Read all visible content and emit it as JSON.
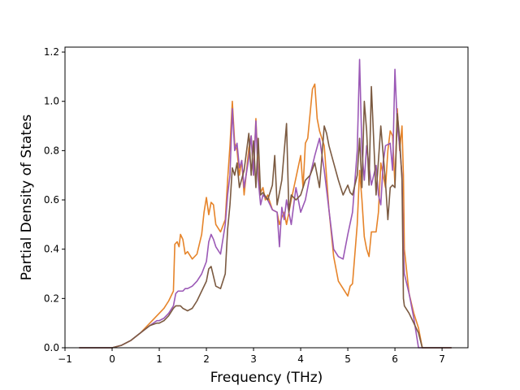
{
  "chart_data": {
    "type": "line",
    "title": "",
    "xlabel": "Frequency (THz)",
    "ylabel": "Partial Density of States",
    "xlim": [
      -1.0,
      7.55
    ],
    "ylim": [
      0.0,
      1.22
    ],
    "xticks": [
      -1,
      0,
      1,
      2,
      3,
      4,
      5,
      6,
      7
    ],
    "xtick_labels": [
      "−1",
      "0",
      "1",
      "2",
      "3",
      "4",
      "5",
      "6",
      "7"
    ],
    "yticks": [
      0.0,
      0.2,
      0.4,
      0.6,
      0.8,
      1.0,
      1.2
    ],
    "ytick_labels": [
      "0.0",
      "0.2",
      "0.4",
      "0.6",
      "0.8",
      "1.0",
      "1.2"
    ],
    "grid": false,
    "legend": "none",
    "series": [
      {
        "color": "#e6842a",
        "x": [
          -0.7,
          0.0,
          0.2,
          0.4,
          0.6,
          0.8,
          0.95,
          1.0,
          1.1,
          1.2,
          1.3,
          1.33,
          1.38,
          1.42,
          1.45,
          1.5,
          1.55,
          1.6,
          1.7,
          1.8,
          1.9,
          1.95,
          2.0,
          2.05,
          2.1,
          2.15,
          2.2,
          2.3,
          2.4,
          2.45,
          2.5,
          2.55,
          2.6,
          2.65,
          2.7,
          2.75,
          2.8,
          2.9,
          2.95,
          3.0,
          3.05,
          3.1,
          3.15,
          3.2,
          3.25,
          3.3,
          3.4,
          3.5,
          3.55,
          3.6,
          3.65,
          3.7,
          3.8,
          3.9,
          4.0,
          4.05,
          4.1,
          4.15,
          4.2,
          4.25,
          4.3,
          4.35,
          4.4,
          4.5,
          4.6,
          4.7,
          4.8,
          4.9,
          5.0,
          5.05,
          5.1,
          5.2,
          5.25,
          5.3,
          5.35,
          5.4,
          5.45,
          5.5,
          5.6,
          5.65,
          5.7,
          5.75,
          5.8,
          5.85,
          5.9,
          5.95,
          6.0,
          6.05,
          6.1,
          6.15,
          6.18,
          6.2,
          6.3,
          6.4,
          6.5,
          6.58,
          7.2
        ],
        "y": [
          0.0,
          0.0,
          0.01,
          0.03,
          0.06,
          0.1,
          0.13,
          0.14,
          0.16,
          0.19,
          0.23,
          0.42,
          0.43,
          0.41,
          0.46,
          0.44,
          0.38,
          0.39,
          0.36,
          0.38,
          0.46,
          0.55,
          0.61,
          0.54,
          0.59,
          0.58,
          0.5,
          0.47,
          0.52,
          0.68,
          0.82,
          1.0,
          0.83,
          0.8,
          0.7,
          0.76,
          0.62,
          0.81,
          0.86,
          0.7,
          0.93,
          0.72,
          0.63,
          0.65,
          0.6,
          0.62,
          0.56,
          0.55,
          0.5,
          0.53,
          0.55,
          0.5,
          0.6,
          0.69,
          0.78,
          0.65,
          0.83,
          0.85,
          0.95,
          1.05,
          1.07,
          0.93,
          0.88,
          0.82,
          0.56,
          0.37,
          0.27,
          0.24,
          0.21,
          0.25,
          0.26,
          0.5,
          0.72,
          0.6,
          0.45,
          0.4,
          0.37,
          0.47,
          0.47,
          0.55,
          0.75,
          0.7,
          0.65,
          0.8,
          0.88,
          0.86,
          0.66,
          0.97,
          0.8,
          0.9,
          0.7,
          0.4,
          0.22,
          0.14,
          0.08,
          0.0,
          0.0
        ]
      },
      {
        "color": "#9b59b6",
        "x": [
          -0.7,
          0.0,
          0.2,
          0.4,
          0.6,
          0.8,
          0.95,
          1.0,
          1.1,
          1.2,
          1.3,
          1.35,
          1.4,
          1.5,
          1.55,
          1.6,
          1.7,
          1.8,
          1.9,
          2.0,
          2.05,
          2.1,
          2.15,
          2.2,
          2.3,
          2.4,
          2.45,
          2.5,
          2.55,
          2.6,
          2.65,
          2.7,
          2.75,
          2.8,
          2.9,
          2.95,
          3.0,
          3.05,
          3.1,
          3.15,
          3.2,
          3.3,
          3.4,
          3.5,
          3.55,
          3.6,
          3.65,
          3.7,
          3.8,
          3.9,
          4.0,
          4.1,
          4.2,
          4.3,
          4.4,
          4.5,
          4.6,
          4.7,
          4.8,
          4.9,
          5.0,
          5.1,
          5.2,
          5.25,
          5.3,
          5.35,
          5.4,
          5.5,
          5.6,
          5.65,
          5.7,
          5.75,
          5.8,
          5.9,
          5.95,
          6.0,
          6.05,
          6.1,
          6.15,
          6.18,
          6.2,
          6.3,
          6.4,
          6.5,
          6.58,
          7.2
        ],
        "y": [
          0.0,
          0.0,
          0.01,
          0.03,
          0.06,
          0.09,
          0.11,
          0.11,
          0.12,
          0.14,
          0.17,
          0.22,
          0.23,
          0.23,
          0.24,
          0.24,
          0.25,
          0.27,
          0.3,
          0.35,
          0.43,
          0.46,
          0.44,
          0.41,
          0.38,
          0.5,
          0.62,
          0.7,
          0.97,
          0.8,
          0.83,
          0.73,
          0.76,
          0.65,
          0.77,
          0.86,
          0.7,
          0.92,
          0.68,
          0.58,
          0.62,
          0.6,
          0.56,
          0.55,
          0.41,
          0.57,
          0.52,
          0.6,
          0.5,
          0.65,
          0.55,
          0.6,
          0.7,
          0.78,
          0.85,
          0.72,
          0.56,
          0.4,
          0.37,
          0.36,
          0.46,
          0.55,
          0.8,
          1.17,
          0.8,
          0.68,
          0.82,
          0.66,
          0.74,
          0.62,
          0.58,
          0.75,
          0.82,
          0.83,
          0.72,
          1.13,
          0.9,
          0.82,
          0.7,
          0.4,
          0.3,
          0.22,
          0.12,
          0.0,
          0.0,
          0.0
        ]
      },
      {
        "color": "#7b5a41",
        "x": [
          -0.7,
          0.0,
          0.2,
          0.4,
          0.6,
          0.8,
          0.95,
          1.0,
          1.1,
          1.2,
          1.3,
          1.35,
          1.4,
          1.45,
          1.5,
          1.6,
          1.7,
          1.8,
          1.9,
          2.0,
          2.05,
          2.1,
          2.15,
          2.2,
          2.3,
          2.4,
          2.45,
          2.5,
          2.55,
          2.6,
          2.65,
          2.7,
          2.8,
          2.9,
          2.95,
          3.0,
          3.05,
          3.1,
          3.15,
          3.2,
          3.3,
          3.4,
          3.45,
          3.5,
          3.6,
          3.7,
          3.75,
          3.8,
          3.9,
          4.0,
          4.1,
          4.2,
          4.3,
          4.4,
          4.5,
          4.55,
          4.6,
          4.7,
          4.8,
          4.9,
          5.0,
          5.05,
          5.1,
          5.2,
          5.25,
          5.3,
          5.35,
          5.4,
          5.45,
          5.5,
          5.6,
          5.7,
          5.8,
          5.85,
          5.9,
          5.95,
          6.0,
          6.05,
          6.1,
          6.15,
          6.18,
          6.2,
          6.3,
          6.4,
          6.5,
          6.58,
          7.2
        ],
        "y": [
          0.0,
          0.0,
          0.01,
          0.03,
          0.06,
          0.09,
          0.1,
          0.1,
          0.11,
          0.13,
          0.16,
          0.17,
          0.17,
          0.17,
          0.16,
          0.15,
          0.16,
          0.19,
          0.23,
          0.27,
          0.32,
          0.33,
          0.29,
          0.25,
          0.24,
          0.3,
          0.48,
          0.58,
          0.73,
          0.7,
          0.75,
          0.65,
          0.72,
          0.87,
          0.7,
          0.84,
          0.65,
          0.85,
          0.62,
          0.63,
          0.6,
          0.66,
          0.78,
          0.58,
          0.68,
          0.91,
          0.55,
          0.62,
          0.6,
          0.62,
          0.68,
          0.7,
          0.75,
          0.65,
          0.9,
          0.87,
          0.82,
          0.75,
          0.68,
          0.62,
          0.66,
          0.63,
          0.62,
          0.7,
          0.85,
          0.65,
          1.0,
          0.88,
          0.66,
          1.06,
          0.62,
          0.9,
          0.67,
          0.52,
          0.65,
          0.66,
          0.65,
          0.95,
          0.85,
          0.68,
          0.2,
          0.17,
          0.14,
          0.1,
          0.06,
          0.0,
          0.0
        ]
      }
    ]
  }
}
